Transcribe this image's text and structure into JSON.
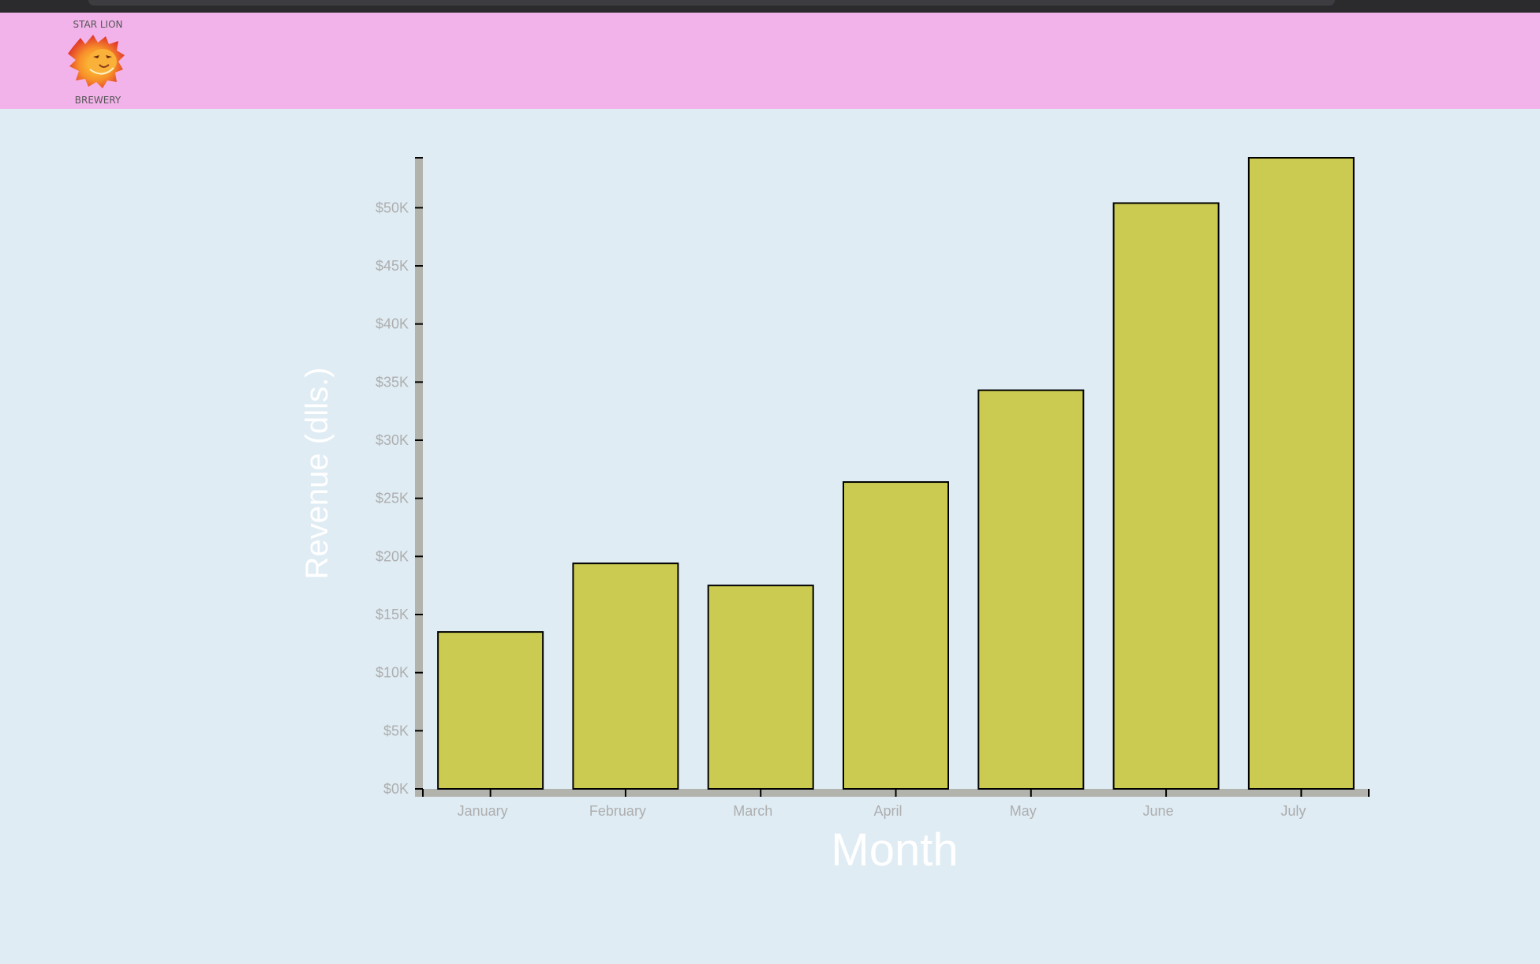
{
  "brand": {
    "top_text": "STAR LION",
    "bottom_text": "BREWERY"
  },
  "colors": {
    "header_bg": "#f2b3ea",
    "page_bg": "#dfecf4",
    "bar_fill": "#cbcb52",
    "bar_stroke": "#000000",
    "axis_bg": "#b3b3ad",
    "tick_label": "#aeaeae",
    "axis_title": "#ffffff"
  },
  "chart_data": {
    "type": "bar",
    "title": "",
    "xlabel": "Month",
    "ylabel": "Revenue (dlls.)",
    "categories": [
      "January",
      "February",
      "March",
      "April",
      "May",
      "June",
      "July"
    ],
    "values": [
      13500,
      19400,
      17500,
      26400,
      34300,
      50400,
      54300
    ],
    "ylim": [
      0,
      54300
    ],
    "yticks": [
      0,
      5000,
      10000,
      15000,
      20000,
      25000,
      30000,
      35000,
      40000,
      45000,
      50000
    ],
    "ytick_labels": [
      "$0K",
      "$5K",
      "$10K",
      "$15K",
      "$20K",
      "$25K",
      "$30K",
      "$35K",
      "$40K",
      "$45K",
      "$50K"
    ],
    "grid": false,
    "legend": "none"
  }
}
